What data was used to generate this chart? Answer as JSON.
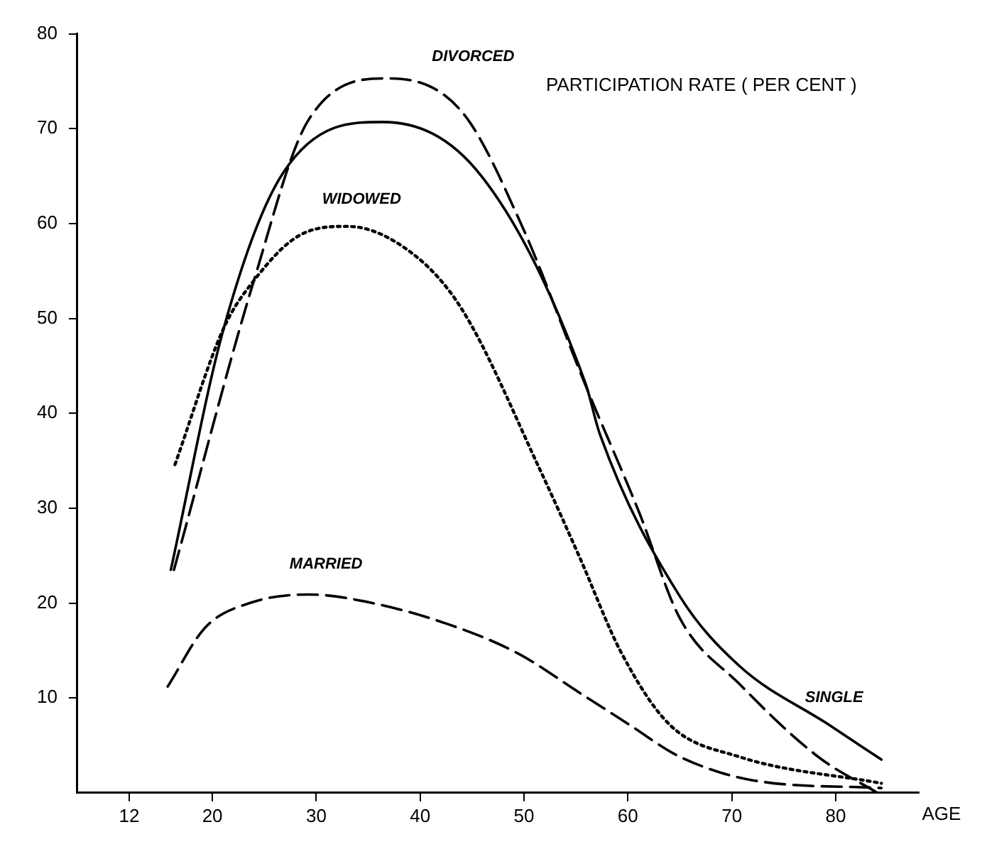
{
  "chart_data": {
    "type": "line",
    "xlabel": "AGE",
    "ylabel": "PARTICIPATION RATE ( PER CENT )",
    "xlim": [
      7,
      88
    ],
    "xticks": [
      12,
      20,
      30,
      40,
      50,
      60,
      70,
      80
    ],
    "ylim": [
      0,
      80
    ],
    "yticks": [
      10,
      20,
      30,
      40,
      50,
      60,
      70,
      80
    ],
    "grid": false,
    "legend": false,
    "marker": "none",
    "series": [
      {
        "name": "SINGLE",
        "color": "#000000",
        "line_style": "solid",
        "x": [
          16,
          21.1,
          26.9,
          36.4,
          45.9,
          55.9,
          57.3,
          65,
          70.7,
          79.3,
          84.4
        ],
        "values": [
          23.5,
          49,
          65.5,
          70.7,
          65,
          43.2,
          37.8,
          20.7,
          13.4,
          7.2,
          3.5
        ]
      },
      {
        "name": "DIVORCED",
        "color": "#000000",
        "line_style": "dashed",
        "x": [
          16.3,
          24,
          29.3,
          36.9,
          44,
          49.7,
          55.9,
          61.1,
          65,
          70.7,
          78.3,
          84
        ],
        "values": [
          23.5,
          54,
          71,
          75.3,
          71.8,
          60,
          43,
          29.5,
          18.4,
          11.5,
          3.8,
          0
        ]
      },
      {
        "name": "WIDOWED",
        "color": "#000000",
        "line_style": "dotted",
        "x": [
          16.4,
          21.1,
          24,
          28.3,
          33,
          39.3,
          44,
          51.6,
          55.4,
          59.3,
          64,
          70.7,
          84.4
        ],
        "values": [
          34.6,
          49,
          54,
          58.7,
          59.7,
          56.8,
          51,
          33.9,
          24.7,
          14.9,
          7.2,
          3.8,
          1
        ]
      },
      {
        "name": "MARRIED",
        "color": "#000000",
        "line_style": "dashed",
        "x": [
          15.7,
          19.3,
          23.6,
          29.3,
          35.4,
          42.6,
          49.4,
          55.4,
          60.1,
          65,
          72.1,
          84.4
        ],
        "values": [
          11.2,
          17.4,
          20,
          20.9,
          20,
          17.8,
          14.7,
          10.5,
          7.2,
          3.8,
          1.3,
          0.5
        ]
      }
    ]
  }
}
